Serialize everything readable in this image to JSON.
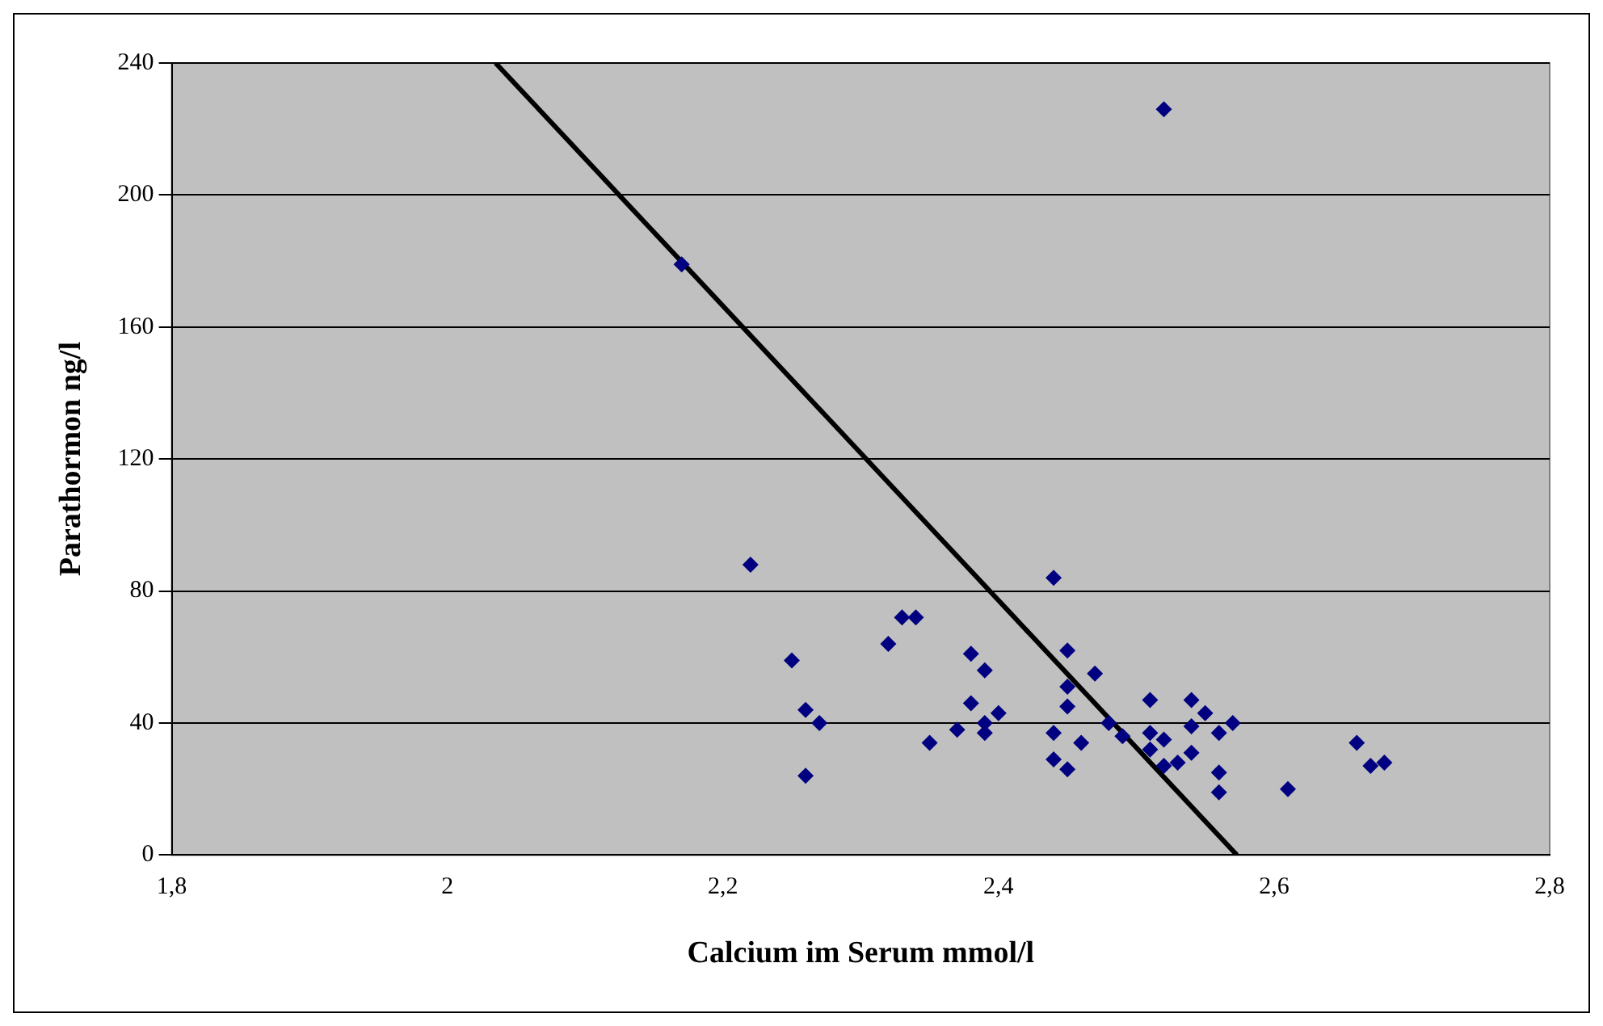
{
  "chart_data": {
    "type": "scatter",
    "xlabel": "Calcium im Serum mmol/l",
    "ylabel": "Parathormon ng/l",
    "xlim": [
      1.8,
      2.8
    ],
    "xticks": [
      {
        "value": 1.8,
        "label": "1,8"
      },
      2,
      {
        "value": 2.2,
        "label": "2,2"
      },
      {
        "value": 2.4,
        "label": "2,4"
      },
      {
        "value": 2.6,
        "label": "2,6"
      },
      {
        "value": 2.8,
        "label": "2,8"
      }
    ],
    "ylim": [
      0,
      240
    ],
    "yticks": [
      0,
      40,
      80,
      120,
      160,
      200,
      240
    ],
    "grid": "y",
    "legend": false,
    "marker": "diamond",
    "series": [
      {
        "type": "scatter",
        "color": "#000080",
        "x": [
          2.17,
          2.22,
          2.25,
          2.26,
          2.26,
          2.27,
          2.32,
          2.33,
          2.34,
          2.35,
          2.37,
          2.38,
          2.38,
          2.39,
          2.39,
          2.39,
          2.4,
          2.44,
          2.44,
          2.44,
          2.45,
          2.45,
          2.45,
          2.45,
          2.46,
          2.47,
          2.48,
          2.49,
          2.51,
          2.51,
          2.51,
          2.52,
          2.52,
          2.52,
          2.53,
          2.54,
          2.54,
          2.54,
          2.55,
          2.56,
          2.56,
          2.56,
          2.57,
          2.61,
          2.66,
          2.67,
          2.68
        ],
        "values": [
          179,
          88,
          59,
          44,
          24,
          40,
          64,
          72,
          72,
          34,
          38,
          61,
          46,
          56,
          40,
          37,
          43,
          84,
          37,
          29,
          62,
          51,
          45,
          26,
          34,
          55,
          40,
          36,
          47,
          37,
          32,
          226,
          35,
          27,
          28,
          47,
          39,
          31,
          43,
          37,
          25,
          19,
          40,
          20,
          34,
          27,
          28
        ]
      },
      {
        "type": "line",
        "color": "#000000",
        "marker": "none",
        "x": [
          2.035,
          2.573
        ],
        "values": [
          240,
          0
        ]
      }
    ]
  }
}
